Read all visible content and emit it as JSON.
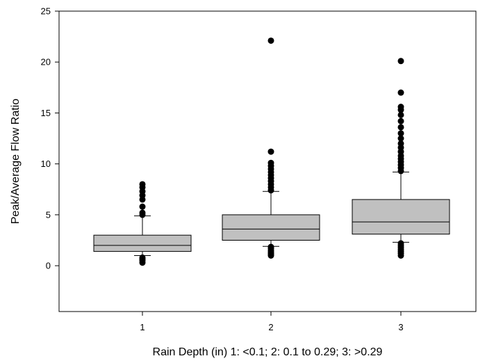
{
  "chart_data": {
    "type": "box",
    "title": "",
    "xlabel": "Rain Depth (in) 1: <0.1; 2: 0.1 to 0.29; 3: >0.29",
    "ylabel": "Peak/Average Flow Ratio",
    "ylim": [
      -4.5,
      25
    ],
    "yticks": [
      0,
      5,
      10,
      15,
      20,
      25
    ],
    "yticklabels": [
      "0",
      "5",
      "10",
      "15",
      "20",
      "25"
    ],
    "categories": [
      "1",
      "2",
      "3"
    ],
    "grid": false,
    "colors": {
      "box_fill": "#c0c0c0",
      "stroke": "#000000",
      "outlier": "#000000",
      "background": "#ffffff"
    },
    "boxes": [
      {
        "category": "1",
        "whisker_low": 1.0,
        "q1": 1.4,
        "median": 2.0,
        "q3": 3.0,
        "whisker_high": 4.9,
        "outliers": [
          0.3,
          0.5,
          0.65,
          0.8,
          5.0,
          5.2,
          5.8,
          6.5,
          6.9,
          7.3,
          7.7,
          8.0
        ]
      },
      {
        "category": "2",
        "whisker_low": 1.9,
        "q1": 2.5,
        "median": 3.6,
        "q3": 5.0,
        "whisker_high": 7.3,
        "outliers": [
          1.0,
          1.1,
          1.2,
          1.35,
          1.5,
          1.7,
          1.85,
          7.4,
          7.7,
          8.0,
          8.3,
          8.6,
          8.9,
          9.2,
          9.5,
          9.8,
          10.1,
          11.2,
          22.1
        ]
      },
      {
        "category": "3",
        "whisker_low": 2.3,
        "q1": 3.1,
        "median": 4.3,
        "q3": 6.5,
        "whisker_high": 9.2,
        "outliers": [
          1.0,
          1.2,
          1.4,
          1.6,
          1.8,
          2.0,
          2.2,
          9.3,
          9.6,
          9.9,
          10.2,
          10.5,
          10.8,
          11.2,
          11.6,
          12.0,
          12.5,
          13.0,
          13.6,
          14.2,
          14.8,
          15.3,
          15.6,
          17.0,
          20.1
        ]
      }
    ]
  }
}
